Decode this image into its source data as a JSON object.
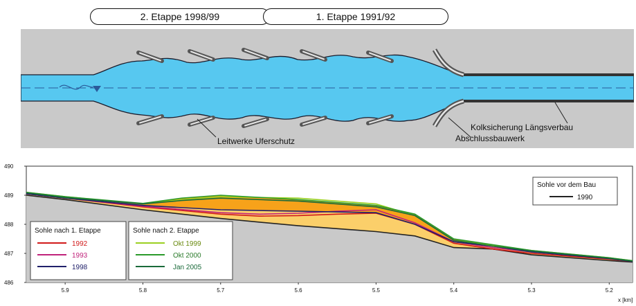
{
  "header": {
    "stage2_label": "2. Etappe 1998/99",
    "stage1_label": "1. Etappe 1991/92"
  },
  "plan": {
    "label_guide_walls": "Leitwerke Uferschutz",
    "label_scour_protection": "Kolksicherung Längsverbau",
    "label_closing_structure": "Abschlussbauwerk",
    "colors": {
      "background": "#c9c9c9",
      "water": "#57c8f0",
      "structure": "#555555"
    }
  },
  "chart_data": {
    "type": "line",
    "x_ticks": [
      "5.9",
      "5.8",
      "5.7",
      "5.6",
      "5.5",
      "5.4",
      "5.3",
      "5.2"
    ],
    "y_ticks": [
      "490",
      "489",
      "488",
      "487",
      "486"
    ],
    "ylim": [
      486,
      490
    ],
    "xlim": [
      5.95,
      5.17
    ],
    "x_unit_label": "x [km]",
    "legend_before": {
      "title": "Sohle vor dem Bau",
      "items": [
        {
          "label": "1990",
          "color": "#222222"
        }
      ]
    },
    "legend_stage1": {
      "title": "Sohle nach 1. Etappe",
      "items": [
        {
          "label": "1992",
          "color": "#d11a1a"
        },
        {
          "label": "1993",
          "color": "#c0227a"
        },
        {
          "label": "1998",
          "color": "#20206a"
        }
      ]
    },
    "legend_stage2": {
      "title": "Sohle nach 2. Etappe",
      "items": [
        {
          "label": "Okt 1999",
          "color": "#9ad020"
        },
        {
          "label": "Okt 2000",
          "color": "#2a9a2a"
        },
        {
          "label": "Jan 2005",
          "color": "#1a6a3a"
        }
      ]
    },
    "fills": {
      "orange": "#f7a21a",
      "light_orange": "#fbcf6a",
      "ground": "#c9c9c9"
    },
    "series": [
      {
        "id": "s1990",
        "color": "#222222",
        "x": [
          5.95,
          5.9,
          5.8,
          5.7,
          5.6,
          5.5,
          5.45,
          5.4,
          5.35,
          5.3,
          5.2,
          5.17
        ],
        "y": [
          489.0,
          488.85,
          488.5,
          488.2,
          487.95,
          487.75,
          487.6,
          487.2,
          487.15,
          486.95,
          486.75,
          486.7
        ]
      },
      {
        "id": "s1992",
        "color": "#d11a1a",
        "x": [
          5.95,
          5.9,
          5.8,
          5.7,
          5.65,
          5.6,
          5.55,
          5.5,
          5.45,
          5.4,
          5.35,
          5.3,
          5.2,
          5.17
        ],
        "y": [
          489.05,
          488.9,
          488.6,
          488.35,
          488.28,
          488.3,
          488.35,
          488.38,
          488.0,
          487.35,
          487.15,
          487.0,
          486.8,
          486.72
        ]
      },
      {
        "id": "s1993",
        "color": "#c0227a",
        "x": [
          5.95,
          5.9,
          5.8,
          5.7,
          5.65,
          5.6,
          5.55,
          5.5,
          5.45,
          5.4,
          5.35,
          5.3,
          5.2,
          5.17
        ],
        "y": [
          489.05,
          488.9,
          488.62,
          488.4,
          488.35,
          488.38,
          488.45,
          488.5,
          488.05,
          487.4,
          487.2,
          487.05,
          486.82,
          486.74
        ]
      },
      {
        "id": "s1998",
        "color": "#20206a",
        "x": [
          5.95,
          5.9,
          5.8,
          5.7,
          5.6,
          5.5,
          5.45,
          5.4,
          5.35,
          5.3,
          5.2,
          5.17
        ],
        "y": [
          489.05,
          488.9,
          488.65,
          488.5,
          488.45,
          488.4,
          488.0,
          487.4,
          487.25,
          487.05,
          486.82,
          486.72
        ]
      },
      {
        "id": "sOkt1999",
        "color": "#9ad020",
        "x": [
          5.95,
          5.9,
          5.8,
          5.75,
          5.7,
          5.6,
          5.5,
          5.45,
          5.4,
          5.35,
          5.3,
          5.2,
          5.17
        ],
        "y": [
          489.1,
          488.95,
          488.7,
          488.85,
          488.95,
          488.9,
          488.7,
          488.3,
          487.45,
          487.28,
          487.1,
          486.85,
          486.75
        ]
      },
      {
        "id": "sOkt2000",
        "color": "#2a9a2a",
        "x": [
          5.95,
          5.9,
          5.8,
          5.75,
          5.7,
          5.6,
          5.5,
          5.45,
          5.4,
          5.35,
          5.3,
          5.2,
          5.17
        ],
        "y": [
          489.1,
          488.95,
          488.72,
          488.9,
          489.0,
          488.85,
          488.65,
          488.35,
          487.5,
          487.3,
          487.1,
          486.85,
          486.75
        ]
      },
      {
        "id": "sJan2005",
        "color": "#1a6a3a",
        "x": [
          5.95,
          5.9,
          5.8,
          5.75,
          5.7,
          5.6,
          5.5,
          5.45,
          5.4,
          5.35,
          5.3,
          5.2,
          5.17
        ],
        "y": [
          489.08,
          488.92,
          488.7,
          488.82,
          488.9,
          488.8,
          488.6,
          488.3,
          487.45,
          487.25,
          487.08,
          486.83,
          486.73
        ]
      }
    ]
  }
}
